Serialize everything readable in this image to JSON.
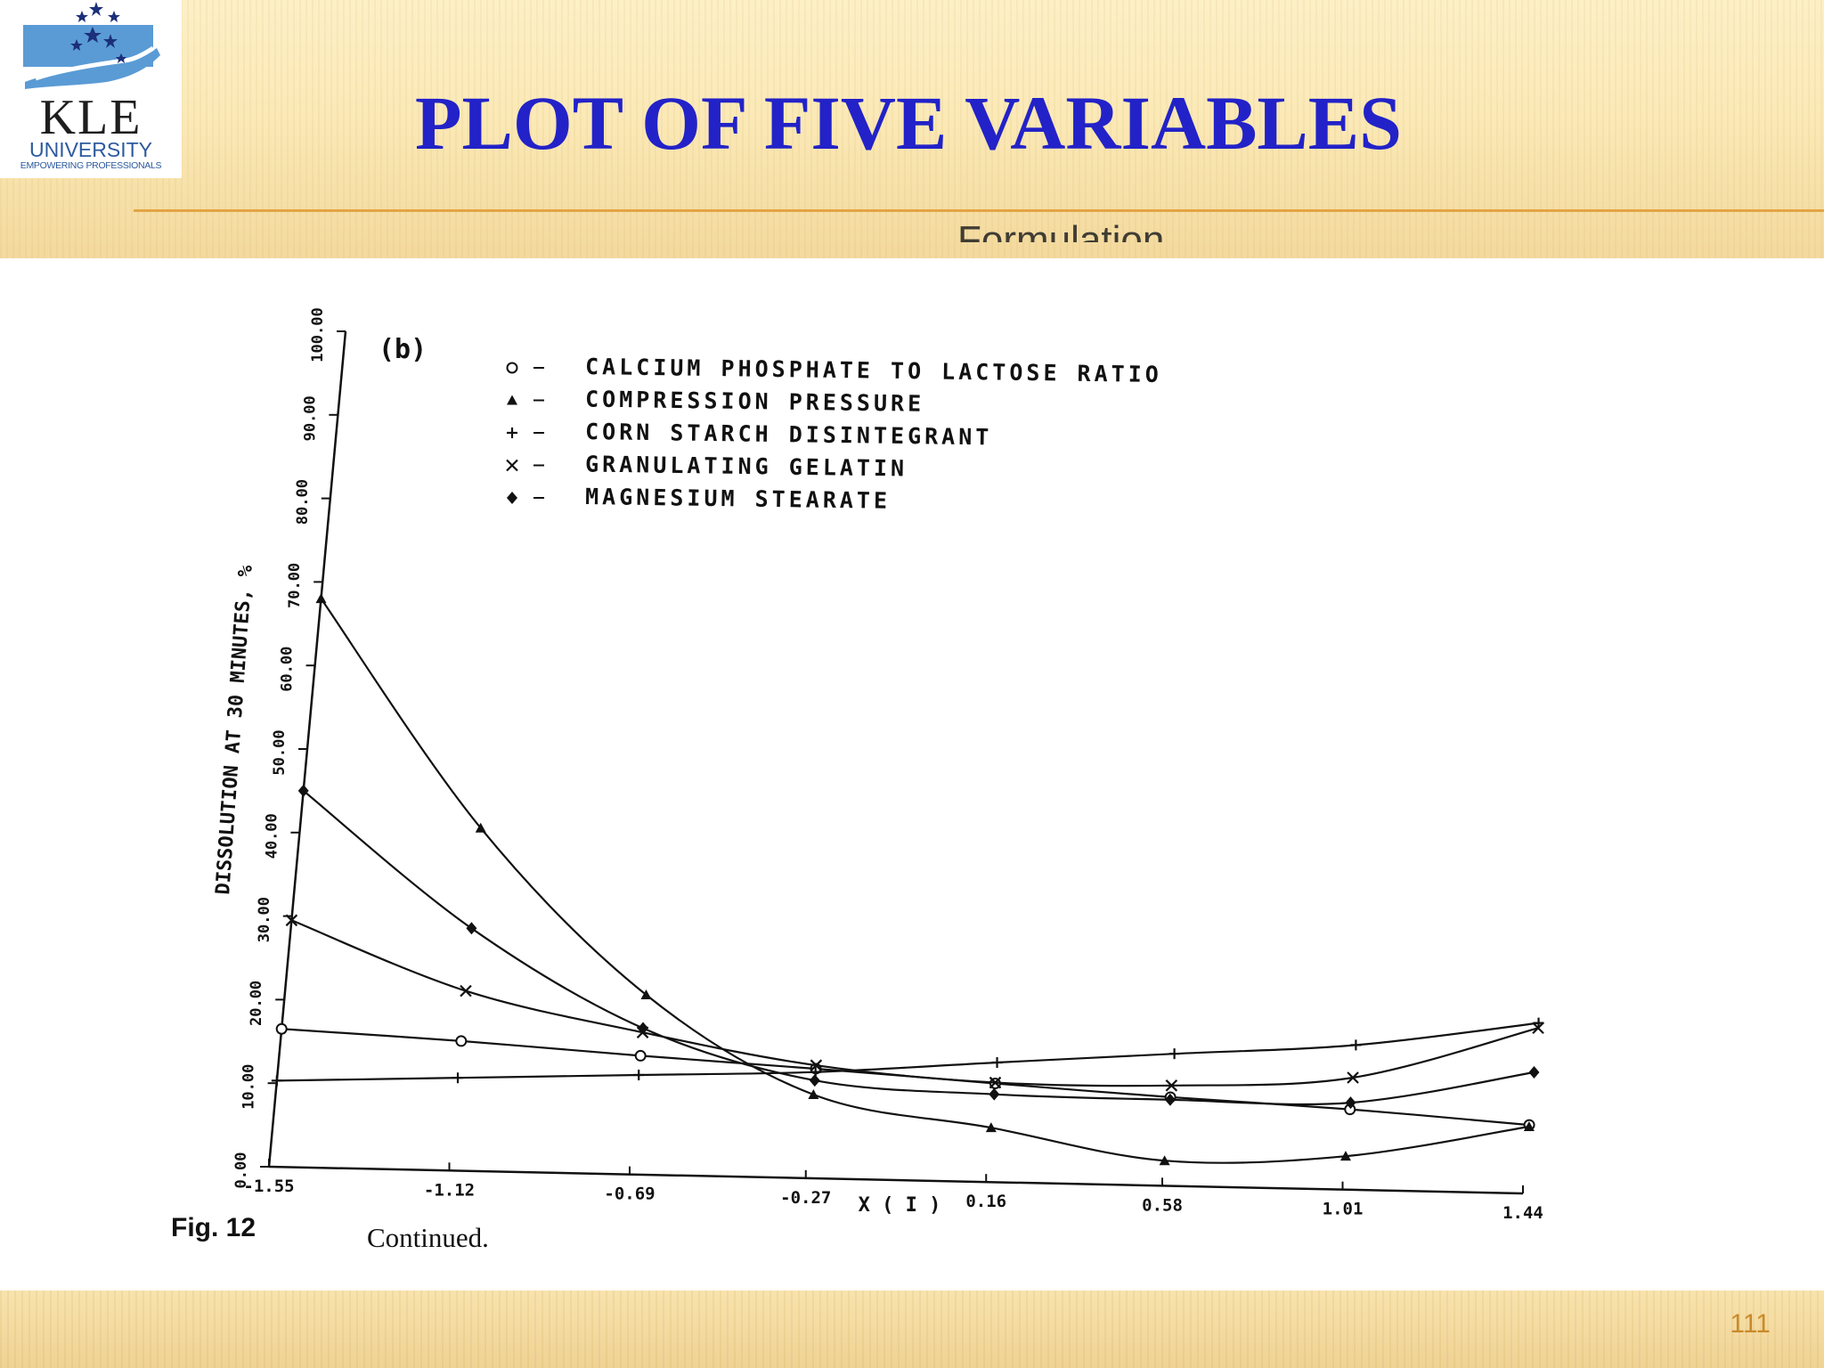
{
  "slide": {
    "title": "PLOT OF FIVE VARIABLES",
    "page_number": "111",
    "colors": {
      "title": "#2222c8",
      "header_line": "#e3a544",
      "page_number": "#c98a2a"
    }
  },
  "logo": {
    "name": "KLE",
    "subtitle": "UNIVERSITY",
    "tagline": "EMPOWERING PROFESSIONALS",
    "icon": "hand-with-stars-icon"
  },
  "figure": {
    "panel_label": "(b)",
    "cut_off_title": "Formulation",
    "caption_label": "Fig. 12",
    "caption_text": "Continued."
  },
  "chart_data": {
    "type": "line",
    "ylabel": "DISSOLUTION AT 30 MINUTES, %",
    "xlabel": "X ( I )",
    "x_ticks": [
      "-1.55",
      "-1.12",
      "-0.69",
      "-0.27",
      "0.16",
      "0.58",
      "1.01",
      "1.44"
    ],
    "y_ticks": [
      "0.00",
      "10.00",
      "20.00",
      "30.00",
      "40.00",
      "50.00",
      "60.00",
      "70.00",
      "80.00",
      "90.00",
      "100.00"
    ],
    "xlim": [
      -1.55,
      1.44
    ],
    "ylim": [
      0,
      100
    ],
    "legend_position": "top",
    "x": [
      -1.55,
      -1.12,
      -0.69,
      -0.27,
      0.16,
      0.58,
      1.01,
      1.44
    ],
    "series": [
      {
        "name": "CALCIUM PHOSPHATE TO LACTOSE RATIO",
        "marker": "circle-dot",
        "values": [
          16.5,
          15.5,
          14.2,
          13.1,
          11.8,
          10.6,
          9.6,
          8.2
        ]
      },
      {
        "name": "COMPRESSION PRESSURE",
        "marker": "triangle",
        "values": [
          68.0,
          41.0,
          21.5,
          10.0,
          6.5,
          3.0,
          4.0,
          8.0
        ]
      },
      {
        "name": "CORN STARCH DISINTEGRANT",
        "marker": "plus",
        "values": [
          10.3,
          11.1,
          11.9,
          12.7,
          14.3,
          15.8,
          17.3,
          20.4
        ]
      },
      {
        "name": "GRANULATING GELATIN",
        "marker": "x",
        "values": [
          29.5,
          21.5,
          17.0,
          13.5,
          11.9,
          12.0,
          13.4,
          19.8
        ]
      },
      {
        "name": "MAGNESIUM STEARATE",
        "marker": "diamond-dot",
        "values": [
          45.0,
          29.0,
          17.5,
          11.7,
          10.5,
          10.3,
          10.4,
          14.5
        ]
      }
    ]
  }
}
